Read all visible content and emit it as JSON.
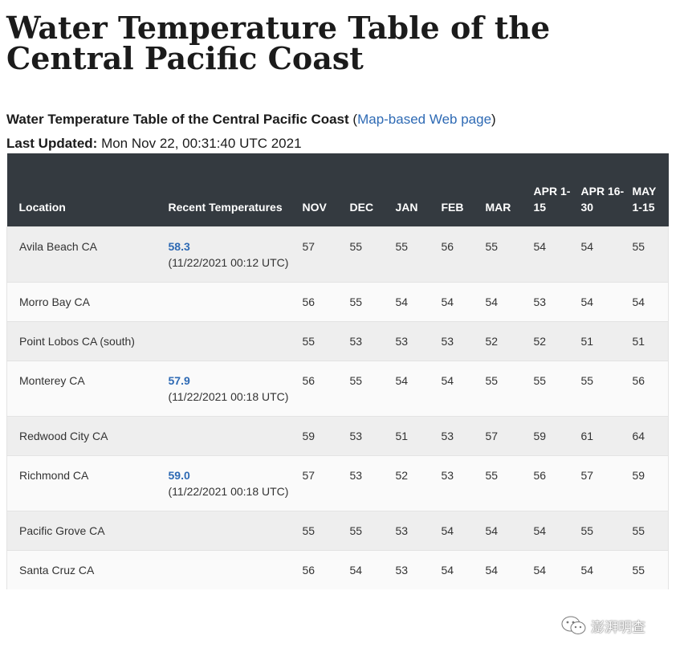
{
  "page": {
    "title": "Water Temperature Table of the Central Pacific Coast",
    "subtitle_bold": "Water Temperature Table of the Central Pacific Coast",
    "subtitle_open": " (",
    "subtitle_link": "Map-based Web page",
    "subtitle_close": ")",
    "updated_label": "Last Updated:",
    "updated_value": " Mon Nov 22, 00:31:40 UTC 2021"
  },
  "table": {
    "headers": {
      "location": "Location",
      "recent": "Recent Temperatures",
      "months": [
        "NOV",
        "DEC",
        "JAN",
        "FEB",
        "MAR",
        "APR 1-15",
        "APR 16-30",
        "MAY 1-15"
      ]
    },
    "rows": [
      {
        "location": "Avila Beach CA",
        "recent": "58.3",
        "recent_time": "(11/22/2021 00:12 UTC)",
        "values": [
          "57",
          "55",
          "55",
          "56",
          "55",
          "54",
          "54",
          "55"
        ]
      },
      {
        "location": "Morro Bay CA",
        "recent": "",
        "recent_time": "",
        "values": [
          "56",
          "55",
          "54",
          "54",
          "54",
          "53",
          "54",
          "54"
        ]
      },
      {
        "location": "Point Lobos CA (south)",
        "recent": "",
        "recent_time": "",
        "values": [
          "55",
          "53",
          "53",
          "53",
          "52",
          "52",
          "51",
          "51"
        ]
      },
      {
        "location": "Monterey CA",
        "recent": "57.9",
        "recent_time": "(11/22/2021 00:18 UTC)",
        "values": [
          "56",
          "55",
          "54",
          "54",
          "55",
          "55",
          "55",
          "56"
        ]
      },
      {
        "location": "Redwood City CA",
        "recent": "",
        "recent_time": "",
        "values": [
          "59",
          "53",
          "51",
          "53",
          "57",
          "59",
          "61",
          "64"
        ]
      },
      {
        "location": "Richmond CA",
        "recent": "59.0",
        "recent_time": "(11/22/2021 00:18 UTC)",
        "values": [
          "57",
          "53",
          "52",
          "53",
          "55",
          "56",
          "57",
          "59"
        ]
      },
      {
        "location": "Pacific Grove CA",
        "recent": "",
        "recent_time": "",
        "values": [
          "55",
          "55",
          "53",
          "54",
          "54",
          "54",
          "55",
          "55"
        ]
      },
      {
        "location": "Santa Cruz CA",
        "recent": "",
        "recent_time": "",
        "values": [
          "56",
          "54",
          "53",
          "54",
          "54",
          "54",
          "54",
          "55"
        ]
      }
    ]
  },
  "watermark": {
    "icon": "wechat-icon",
    "text": "澎湃明查"
  },
  "colors": {
    "header_bg": "#343a40",
    "link": "#2e6ab4",
    "row_odd": "#eeeeee",
    "row_even": "#fafafa"
  }
}
